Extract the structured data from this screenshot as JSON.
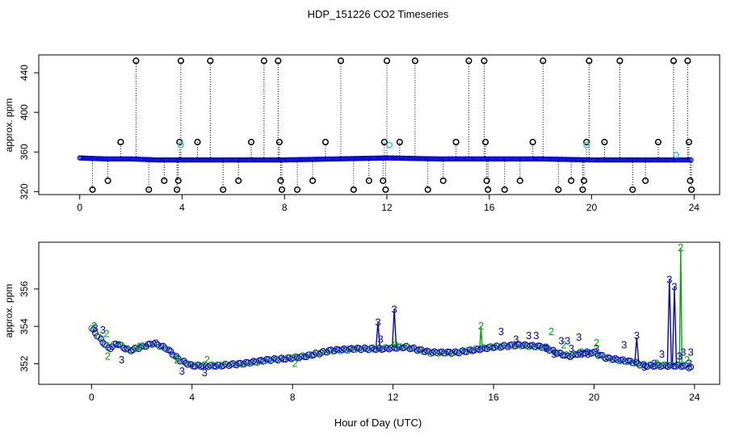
{
  "title": "HDP_151226  CO2 Timeseries",
  "xlabel": "Hour of Day (UTC)",
  "colors": {
    "series1": "#0000CC",
    "series2": "#00AA00",
    "cyan": "#33CCCC",
    "black": "#000000"
  },
  "chart_data": [
    {
      "type": "scatter",
      "panel": "top",
      "ylabel": "approx. ppm",
      "xlim": [
        -1.6,
        25.0
      ],
      "ylim": [
        317,
        458
      ],
      "xticks": [
        0,
        4,
        8,
        12,
        16,
        20,
        24
      ],
      "yticks": [
        320,
        360,
        400,
        440
      ],
      "baseline": [
        {
          "x": 0.0,
          "y": 354
        },
        {
          "x": 1.0,
          "y": 353
        },
        {
          "x": 2.0,
          "y": 353
        },
        {
          "x": 3.0,
          "y": 352
        },
        {
          "x": 4.0,
          "y": 352
        },
        {
          "x": 6.0,
          "y": 352
        },
        {
          "x": 8.0,
          "y": 352
        },
        {
          "x": 10.0,
          "y": 353
        },
        {
          "x": 12.0,
          "y": 354
        },
        {
          "x": 14.0,
          "y": 353
        },
        {
          "x": 16.0,
          "y": 353
        },
        {
          "x": 18.0,
          "y": 353
        },
        {
          "x": 20.0,
          "y": 352
        },
        {
          "x": 22.0,
          "y": 352
        },
        {
          "x": 23.9,
          "y": 352
        }
      ],
      "spikes": [
        {
          "x": 0.5,
          "y": 322
        },
        {
          "x": 1.1,
          "y": 331
        },
        {
          "x": 1.6,
          "y": 370
        },
        {
          "x": 2.2,
          "y": 452
        },
        {
          "x": 2.7,
          "y": 322
        },
        {
          "x": 3.3,
          "y": 331
        },
        {
          "x": 3.8,
          "y": 322
        },
        {
          "x": 3.85,
          "y": 331
        },
        {
          "x": 3.9,
          "y": 370
        },
        {
          "x": 3.95,
          "y": 452
        },
        {
          "x": 4.6,
          "y": 370
        },
        {
          "x": 5.1,
          "y": 452
        },
        {
          "x": 5.6,
          "y": 322
        },
        {
          "x": 6.2,
          "y": 331
        },
        {
          "x": 6.7,
          "y": 370
        },
        {
          "x": 7.2,
          "y": 452
        },
        {
          "x": 7.75,
          "y": 452
        },
        {
          "x": 7.8,
          "y": 370
        },
        {
          "x": 7.85,
          "y": 331
        },
        {
          "x": 7.9,
          "y": 322
        },
        {
          "x": 8.5,
          "y": 322
        },
        {
          "x": 9.1,
          "y": 331
        },
        {
          "x": 9.6,
          "y": 370
        },
        {
          "x": 10.2,
          "y": 452
        },
        {
          "x": 10.7,
          "y": 322
        },
        {
          "x": 11.3,
          "y": 331
        },
        {
          "x": 11.85,
          "y": 331
        },
        {
          "x": 11.9,
          "y": 370
        },
        {
          "x": 11.95,
          "y": 322
        },
        {
          "x": 12.0,
          "y": 452
        },
        {
          "x": 12.5,
          "y": 370
        },
        {
          "x": 13.1,
          "y": 452
        },
        {
          "x": 13.6,
          "y": 322
        },
        {
          "x": 14.2,
          "y": 331
        },
        {
          "x": 14.7,
          "y": 370
        },
        {
          "x": 15.2,
          "y": 452
        },
        {
          "x": 15.8,
          "y": 452
        },
        {
          "x": 15.85,
          "y": 370
        },
        {
          "x": 15.9,
          "y": 331
        },
        {
          "x": 15.95,
          "y": 322
        },
        {
          "x": 16.6,
          "y": 322
        },
        {
          "x": 17.2,
          "y": 331
        },
        {
          "x": 17.7,
          "y": 370
        },
        {
          "x": 18.1,
          "y": 452
        },
        {
          "x": 18.7,
          "y": 322
        },
        {
          "x": 19.2,
          "y": 331
        },
        {
          "x": 19.65,
          "y": 322
        },
        {
          "x": 19.7,
          "y": 331
        },
        {
          "x": 19.8,
          "y": 370
        },
        {
          "x": 19.9,
          "y": 452
        },
        {
          "x": 20.5,
          "y": 370
        },
        {
          "x": 21.1,
          "y": 452
        },
        {
          "x": 21.6,
          "y": 322
        },
        {
          "x": 22.1,
          "y": 331
        },
        {
          "x": 22.6,
          "y": 370
        },
        {
          "x": 23.2,
          "y": 452
        },
        {
          "x": 23.75,
          "y": 452
        },
        {
          "x": 23.8,
          "y": 370
        },
        {
          "x": 23.85,
          "y": 331
        },
        {
          "x": 23.9,
          "y": 322
        }
      ],
      "cyan_points": [
        {
          "x": 3.95,
          "y": 367
        },
        {
          "x": 12.1,
          "y": 367
        },
        {
          "x": 19.8,
          "y": 367
        },
        {
          "x": 23.3,
          "y": 357
        }
      ]
    },
    {
      "type": "scatter",
      "panel": "bottom",
      "ylabel": "approx. ppm",
      "xlim": [
        -2.1,
        25.0
      ],
      "ylim": [
        350.9,
        358.5
      ],
      "xticks": [
        0,
        4,
        8,
        12,
        16,
        20,
        24
      ],
      "yticks": [
        352,
        354,
        356
      ],
      "yticklabels": [
        "352",
        "354",
        "356"
      ],
      "series1_curve": [
        {
          "x": 0.0,
          "y": 353.9
        },
        {
          "x": 0.3,
          "y": 353.4
        },
        {
          "x": 0.7,
          "y": 352.8
        },
        {
          "x": 1.0,
          "y": 353.1
        },
        {
          "x": 1.5,
          "y": 352.7
        },
        {
          "x": 2.0,
          "y": 352.9
        },
        {
          "x": 2.5,
          "y": 353.1
        },
        {
          "x": 3.0,
          "y": 352.8
        },
        {
          "x": 3.5,
          "y": 352.2
        },
        {
          "x": 4.0,
          "y": 351.9
        },
        {
          "x": 4.5,
          "y": 351.9
        },
        {
          "x": 5.0,
          "y": 351.9
        },
        {
          "x": 6.0,
          "y": 352.0
        },
        {
          "x": 7.0,
          "y": 352.2
        },
        {
          "x": 7.9,
          "y": 352.3
        },
        {
          "x": 8.5,
          "y": 352.4
        },
        {
          "x": 9.5,
          "y": 352.7
        },
        {
          "x": 10.5,
          "y": 352.8
        },
        {
          "x": 11.5,
          "y": 352.8
        },
        {
          "x": 12.5,
          "y": 352.9
        },
        {
          "x": 13.5,
          "y": 352.6
        },
        {
          "x": 14.5,
          "y": 352.6
        },
        {
          "x": 15.5,
          "y": 352.8
        },
        {
          "x": 16.0,
          "y": 352.9
        },
        {
          "x": 17.0,
          "y": 353.0
        },
        {
          "x": 18.0,
          "y": 352.9
        },
        {
          "x": 18.5,
          "y": 352.6
        },
        {
          "x": 19.0,
          "y": 352.4
        },
        {
          "x": 19.5,
          "y": 352.6
        },
        {
          "x": 20.0,
          "y": 352.6
        },
        {
          "x": 20.5,
          "y": 352.3
        },
        {
          "x": 21.0,
          "y": 352.2
        },
        {
          "x": 21.5,
          "y": 352.1
        },
        {
          "x": 22.0,
          "y": 351.9
        },
        {
          "x": 22.5,
          "y": 351.9
        },
        {
          "x": 23.0,
          "y": 351.9
        },
        {
          "x": 23.5,
          "y": 351.9
        },
        {
          "x": 23.9,
          "y": 351.8
        }
      ],
      "series1_labels": [
        {
          "x": 0.15,
          "y": 353.9,
          "t": "3"
        },
        {
          "x": 0.45,
          "y": 353.8,
          "t": "3"
        },
        {
          "x": 1.2,
          "y": 352.2,
          "t": "3"
        },
        {
          "x": 3.6,
          "y": 351.6,
          "t": "3"
        },
        {
          "x": 4.5,
          "y": 351.5,
          "t": "3"
        },
        {
          "x": 11.4,
          "y": 354.2,
          "t": "3"
        },
        {
          "x": 11.5,
          "y": 353.3,
          "t": "3"
        },
        {
          "x": 12.05,
          "y": 354.9,
          "t": "3"
        },
        {
          "x": 16.3,
          "y": 353.7,
          "t": "3"
        },
        {
          "x": 16.9,
          "y": 353.3,
          "t": "3"
        },
        {
          "x": 17.4,
          "y": 353.5,
          "t": "3"
        },
        {
          "x": 17.7,
          "y": 353.5,
          "t": "3"
        },
        {
          "x": 18.1,
          "y": 352.8,
          "t": "3"
        },
        {
          "x": 18.4,
          "y": 352.5,
          "t": "3"
        },
        {
          "x": 18.7,
          "y": 353.2,
          "t": "3"
        },
        {
          "x": 18.95,
          "y": 353.2,
          "t": "3"
        },
        {
          "x": 19.1,
          "y": 352.8,
          "t": "3"
        },
        {
          "x": 19.4,
          "y": 353.4,
          "t": "3"
        },
        {
          "x": 19.5,
          "y": 352.5,
          "t": "3"
        },
        {
          "x": 19.75,
          "y": 352.5,
          "t": "3"
        },
        {
          "x": 20.1,
          "y": 352.8,
          "t": "3"
        },
        {
          "x": 21.2,
          "y": 353.0,
          "t": "3"
        },
        {
          "x": 21.7,
          "y": 353.5,
          "t": "3"
        },
        {
          "x": 22.0,
          "y": 351.8,
          "t": "3"
        },
        {
          "x": 22.4,
          "y": 352.0,
          "t": "3"
        },
        {
          "x": 22.7,
          "y": 352.5,
          "t": "3"
        },
        {
          "x": 23.0,
          "y": 356.5,
          "t": "3"
        },
        {
          "x": 23.2,
          "y": 356.1,
          "t": "3"
        },
        {
          "x": 23.4,
          "y": 352.4,
          "t": "3"
        },
        {
          "x": 23.55,
          "y": 352.6,
          "t": "3"
        },
        {
          "x": 23.85,
          "y": 352.6,
          "t": "3"
        },
        {
          "x": 23.8,
          "y": 352.0,
          "t": "3"
        }
      ],
      "series2_labels": [
        {
          "x": 0.1,
          "y": 354.0,
          "t": "2"
        },
        {
          "x": 0.6,
          "y": 353.6,
          "t": "2"
        },
        {
          "x": 1.9,
          "y": 352.9,
          "t": "2"
        },
        {
          "x": 0.65,
          "y": 352.4,
          "t": "2"
        },
        {
          "x": 3.4,
          "y": 352.2,
          "t": "2"
        },
        {
          "x": 4.6,
          "y": 352.2,
          "t": "2"
        },
        {
          "x": 8.1,
          "y": 352.0,
          "t": "2"
        },
        {
          "x": 12.1,
          "y": 353.0,
          "t": "2"
        },
        {
          "x": 15.5,
          "y": 354.0,
          "t": "2"
        },
        {
          "x": 18.3,
          "y": 353.7,
          "t": "2"
        },
        {
          "x": 18.8,
          "y": 353.0,
          "t": "2"
        },
        {
          "x": 20.1,
          "y": 353.1,
          "t": "2"
        },
        {
          "x": 22.5,
          "y": 352.0,
          "t": "2"
        },
        {
          "x": 23.45,
          "y": 358.2,
          "t": "2"
        },
        {
          "x": 23.7,
          "y": 352.2,
          "t": "2"
        }
      ],
      "series1_spike_lines": [
        {
          "x": 11.4,
          "y": 354.2
        },
        {
          "x": 12.05,
          "y": 354.9
        },
        {
          "x": 21.7,
          "y": 353.4
        },
        {
          "x": 23.0,
          "y": 356.5
        },
        {
          "x": 23.2,
          "y": 356.1
        }
      ],
      "series2_spike_lines": [
        {
          "x": 15.5,
          "y": 354.0
        },
        {
          "x": 23.45,
          "y": 358.2
        }
      ]
    }
  ]
}
